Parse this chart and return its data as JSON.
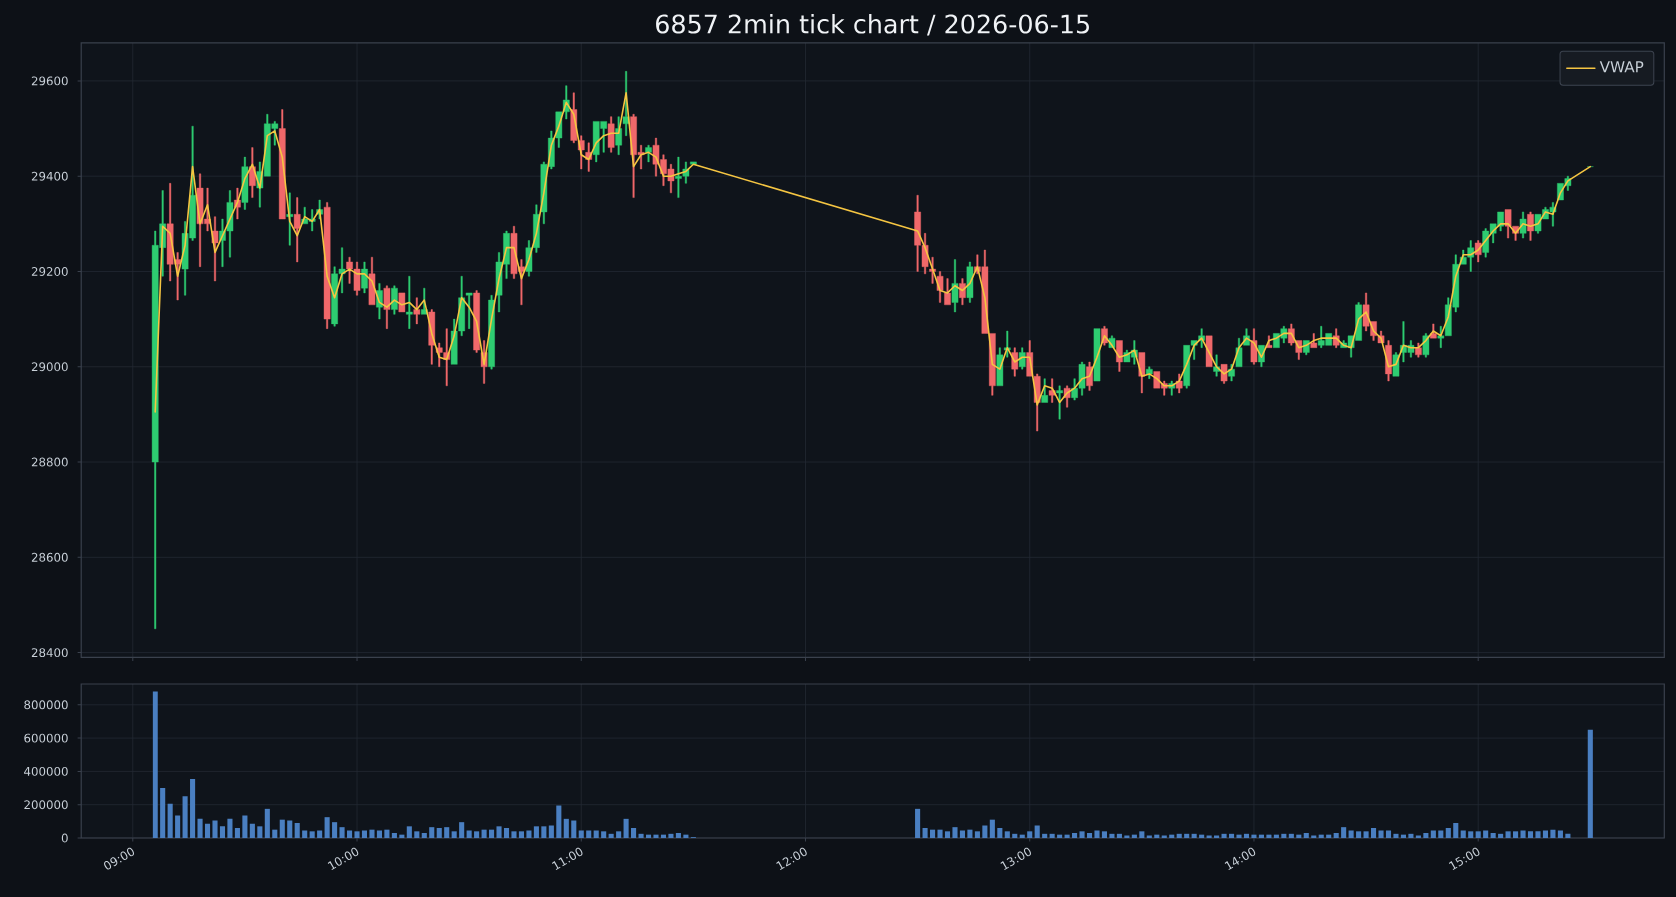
{
  "chart_data": [
    {
      "type": "candlestick",
      "title": "6857 2min tick chart / 2026-06-15",
      "x": [
        9.1,
        9.1333,
        9.1667,
        9.2,
        9.2333,
        9.2667,
        9.3,
        9.3333,
        9.3667,
        9.4,
        9.4333,
        9.4667,
        9.5,
        9.5333,
        9.5667,
        9.6,
        9.6333,
        9.6667,
        9.7,
        9.7333,
        9.7667,
        9.8,
        9.8333,
        9.8667,
        9.9,
        9.9333,
        9.9667,
        10,
        10.0333,
        10.0667,
        10.1,
        10.1333,
        10.1667,
        10.2,
        10.2333,
        10.2667,
        10.3,
        10.3333,
        10.3667,
        10.4,
        10.4333,
        10.4667,
        10.5,
        10.5333,
        10.5667,
        10.6,
        10.6333,
        10.6667,
        10.7,
        10.7333,
        10.7667,
        10.8,
        10.8333,
        10.8667,
        10.9,
        10.9333,
        10.9667,
        11,
        11.0333,
        11.0667,
        11.1,
        11.1333,
        11.1667,
        11.2,
        11.2333,
        11.2667,
        11.3,
        11.3333,
        11.3667,
        11.4,
        11.4333,
        11.4667,
        11.5,
        12.5,
        12.5333,
        12.5667,
        12.6,
        12.6333,
        12.6667,
        12.7,
        12.7333,
        12.7667,
        12.8,
        12.8333,
        12.8667,
        12.9,
        12.9333,
        12.9667,
        13,
        13.0333,
        13.0667,
        13.1,
        13.1333,
        13.1667,
        13.2,
        13.2333,
        13.2667,
        13.3,
        13.3333,
        13.3667,
        13.4,
        13.4333,
        13.4667,
        13.5,
        13.5333,
        13.5667,
        13.6,
        13.6333,
        13.6667,
        13.7,
        13.7333,
        13.7667,
        13.8,
        13.8333,
        13.8667,
        13.9,
        13.9333,
        13.9667,
        14,
        14.0333,
        14.0667,
        14.1,
        14.1333,
        14.1667,
        14.2,
        14.2333,
        14.2667,
        14.3,
        14.3333,
        14.3667,
        14.4,
        14.4333,
        14.4667,
        14.5,
        14.5333,
        14.5667,
        14.6,
        14.6333,
        14.6667,
        14.7,
        14.7333,
        14.7667,
        14.8,
        14.8333,
        14.8667,
        14.9,
        14.9333,
        14.9667,
        15,
        15.0333,
        15.0667,
        15.1,
        15.1333,
        15.1667,
        15.2,
        15.2333,
        15.2667,
        15.3,
        15.3333,
        15.3667,
        15.4,
        15.5
      ],
      "ohlc": [
        [
          28800,
          29285,
          28450,
          29255
        ],
        [
          29250,
          29370,
          29190,
          29300
        ],
        [
          29300,
          29385,
          29180,
          29215
        ],
        [
          29225,
          29240,
          29140,
          29215
        ],
        [
          29205,
          29305,
          29150,
          29280
        ],
        [
          29270,
          29505,
          29265,
          29360
        ],
        [
          29375,
          29405,
          29210,
          29300
        ],
        [
          29310,
          29375,
          29285,
          29300
        ],
        [
          29285,
          29315,
          29180,
          29260
        ],
        [
          29265,
          29310,
          29210,
          29285
        ],
        [
          29285,
          29370,
          29230,
          29345
        ],
        [
          29350,
          29375,
          29310,
          29335
        ],
        [
          29345,
          29440,
          29330,
          29420
        ],
        [
          29420,
          29460,
          29355,
          29380
        ],
        [
          29375,
          29430,
          29335,
          29410
        ],
        [
          29400,
          29530,
          29400,
          29510
        ],
        [
          29500,
          29515,
          29465,
          29510
        ],
        [
          29500,
          29540,
          29310,
          29310
        ],
        [
          29315,
          29365,
          29255,
          29320
        ],
        [
          29320,
          29355,
          29220,
          29290
        ],
        [
          29300,
          29335,
          29300,
          29310
        ],
        [
          29305,
          29330,
          29285,
          29310
        ],
        [
          29320,
          29350,
          29310,
          29330
        ],
        [
          29335,
          29345,
          29080,
          29100
        ],
        [
          29090,
          29210,
          29085,
          29195
        ],
        [
          29195,
          29250,
          29155,
          29205
        ],
        [
          29220,
          29230,
          29175,
          29205
        ],
        [
          29205,
          29220,
          29150,
          29160
        ],
        [
          29165,
          29220,
          29155,
          29205
        ],
        [
          29195,
          29230,
          29130,
          29130
        ],
        [
          29125,
          29175,
          29100,
          29160
        ],
        [
          29165,
          29170,
          29080,
          29120
        ],
        [
          29120,
          29170,
          29110,
          29165
        ],
        [
          29155,
          29155,
          29115,
          29115
        ],
        [
          29110,
          29190,
          29080,
          29115
        ],
        [
          29120,
          29145,
          29090,
          29110
        ],
        [
          29110,
          29165,
          29110,
          29120
        ],
        [
          29115,
          29120,
          29005,
          29045
        ],
        [
          29040,
          29050,
          29000,
          29030
        ],
        [
          29030,
          29080,
          28960,
          29015
        ],
        [
          29005,
          29100,
          29005,
          29075
        ],
        [
          29075,
          29190,
          29065,
          29145
        ],
        [
          29150,
          29155,
          29080,
          29155
        ],
        [
          29155,
          29160,
          29030,
          29035
        ],
        [
          29030,
          29055,
          28965,
          29000
        ],
        [
          29000,
          29150,
          28995,
          29140
        ],
        [
          29150,
          29240,
          29115,
          29220
        ],
        [
          29215,
          29285,
          29185,
          29280
        ],
        [
          29280,
          29295,
          29185,
          29195
        ],
        [
          29210,
          29225,
          29130,
          29200
        ],
        [
          29200,
          29265,
          29190,
          29250
        ],
        [
          29250,
          29340,
          29240,
          29320
        ],
        [
          29325,
          29430,
          29300,
          29425
        ],
        [
          29420,
          29495,
          29415,
          29480
        ],
        [
          29480,
          29535,
          29460,
          29535
        ],
        [
          29535,
          29590,
          29520,
          29560
        ],
        [
          29540,
          29575,
          29470,
          29475
        ],
        [
          29475,
          29485,
          29415,
          29455
        ],
        [
          29450,
          29470,
          29410,
          29435
        ],
        [
          29445,
          29515,
          29430,
          29515
        ],
        [
          29500,
          29515,
          29450,
          29515
        ],
        [
          29510,
          29525,
          29450,
          29460
        ],
        [
          29465,
          29525,
          29445,
          29500
        ],
        [
          29510,
          29620,
          29485,
          29525
        ],
        [
          29525,
          29530,
          29355,
          29445
        ],
        [
          29450,
          29465,
          29415,
          29445
        ],
        [
          29450,
          29465,
          29430,
          29460
        ],
        [
          29465,
          29480,
          29400,
          29425
        ],
        [
          29435,
          29445,
          29380,
          29405
        ],
        [
          29415,
          29425,
          29365,
          29390
        ],
        [
          29395,
          29440,
          29355,
          29400
        ],
        [
          29400,
          29430,
          29385,
          29415
        ],
        [
          29425,
          29430,
          29425,
          29430
        ],
        [
          29325,
          29360,
          29200,
          29255
        ],
        [
          29255,
          29280,
          29195,
          29210
        ],
        [
          29205,
          29230,
          29175,
          29200
        ],
        [
          29190,
          29200,
          29135,
          29160
        ],
        [
          29155,
          29185,
          29130,
          29130
        ],
        [
          29135,
          29225,
          29115,
          29175
        ],
        [
          29175,
          29185,
          29130,
          29145
        ],
        [
          29145,
          29220,
          29135,
          29210
        ],
        [
          29210,
          29235,
          29195,
          29200
        ],
        [
          29210,
          29245,
          29070,
          29070
        ],
        [
          29070,
          29070,
          28940,
          28960
        ],
        [
          28960,
          29040,
          28960,
          29025
        ],
        [
          29035,
          29075,
          29020,
          29040
        ],
        [
          29030,
          29040,
          28980,
          28995
        ],
        [
          29000,
          29040,
          28995,
          29030
        ],
        [
          29030,
          29055,
          28980,
          28980
        ],
        [
          28980,
          28985,
          28865,
          28925
        ],
        [
          28925,
          28975,
          28925,
          28940
        ],
        [
          28950,
          28975,
          28925,
          28940
        ],
        [
          28945,
          28960,
          28890,
          28950
        ],
        [
          28955,
          28960,
          28915,
          28935
        ],
        [
          28935,
          28975,
          28930,
          28955
        ],
        [
          28955,
          29010,
          28940,
          29005
        ],
        [
          29000,
          29010,
          28950,
          28960
        ],
        [
          28970,
          29080,
          28970,
          29080
        ],
        [
          29080,
          29085,
          29045,
          29050
        ],
        [
          29040,
          29065,
          29040,
          29060
        ],
        [
          29055,
          29055,
          28990,
          29010
        ],
        [
          29010,
          29035,
          29010,
          29030
        ],
        [
          29020,
          29055,
          29005,
          29035
        ],
        [
          29030,
          29030,
          28945,
          28980
        ],
        [
          28985,
          29000,
          28975,
          28995
        ],
        [
          28990,
          28990,
          28955,
          28955
        ],
        [
          28965,
          28970,
          28940,
          28955
        ],
        [
          28955,
          28970,
          28940,
          28965
        ],
        [
          28970,
          28985,
          28945,
          28955
        ],
        [
          28960,
          29045,
          28955,
          29045
        ],
        [
          29045,
          29055,
          29015,
          29055
        ],
        [
          29055,
          29080,
          29040,
          29065
        ],
        [
          29065,
          29065,
          29000,
          29000
        ],
        [
          28990,
          29025,
          28980,
          29000
        ],
        [
          29005,
          29005,
          28965,
          28970
        ],
        [
          28980,
          29005,
          28970,
          28995
        ],
        [
          29000,
          29060,
          29000,
          29040
        ],
        [
          29045,
          29080,
          29045,
          29065
        ],
        [
          29055,
          29080,
          29005,
          29010
        ],
        [
          29010,
          29045,
          29000,
          29045
        ],
        [
          29045,
          29065,
          29040,
          29040
        ],
        [
          29040,
          29070,
          29040,
          29070
        ],
        [
          29060,
          29085,
          29050,
          29080
        ],
        [
          29080,
          29090,
          29045,
          29050
        ],
        [
          29055,
          29055,
          29015,
          29030
        ],
        [
          29030,
          29055,
          29025,
          29055
        ],
        [
          29050,
          29070,
          29040,
          29040
        ],
        [
          29045,
          29085,
          29040,
          29055
        ],
        [
          29045,
          29070,
          29045,
          29070
        ],
        [
          29065,
          29080,
          29040,
          29045
        ],
        [
          29040,
          29055,
          29040,
          29050
        ],
        [
          29040,
          29065,
          29020,
          29065
        ],
        [
          29055,
          29135,
          29055,
          29130
        ],
        [
          29130,
          29155,
          29075,
          29085
        ],
        [
          29095,
          29095,
          29055,
          29065
        ],
        [
          29065,
          29075,
          29050,
          29050
        ],
        [
          29045,
          29055,
          28970,
          28985
        ],
        [
          28980,
          29030,
          28980,
          29025
        ],
        [
          29030,
          29095,
          29010,
          29045
        ],
        [
          29030,
          29055,
          29020,
          29045
        ],
        [
          29040,
          29050,
          29020,
          29025
        ],
        [
          29025,
          29070,
          29020,
          29065
        ],
        [
          29070,
          29090,
          29060,
          29060
        ],
        [
          29060,
          29085,
          29040,
          29065
        ],
        [
          29065,
          29145,
          29065,
          29130
        ],
        [
          29125,
          29235,
          29115,
          29215
        ],
        [
          29215,
          29245,
          29215,
          29230
        ],
        [
          29230,
          29265,
          29200,
          29250
        ],
        [
          29260,
          29265,
          29220,
          29235
        ],
        [
          29240,
          29290,
          29230,
          29285
        ],
        [
          29280,
          29300,
          29260,
          29300
        ],
        [
          29295,
          29325,
          29285,
          29325
        ],
        [
          29330,
          29330,
          29270,
          29295
        ],
        [
          29295,
          29295,
          29265,
          29280
        ],
        [
          29280,
          29325,
          29270,
          29310
        ],
        [
          29320,
          29325,
          29265,
          29285
        ],
        [
          29285,
          29320,
          29280,
          29320
        ],
        [
          29310,
          29335,
          29310,
          29330
        ],
        [
          29325,
          29345,
          29295,
          29335
        ],
        [
          29350,
          29385,
          29350,
          29385
        ],
        [
          29380,
          29400,
          29370,
          29395
        ],
        [
          29420,
          29420,
          29420,
          29420
        ]
      ],
      "colors": [
        "#2ecc71",
        "#2ecc71",
        "#f0686a",
        "#f0686a",
        "#2ecc71",
        "#2ecc71",
        "#f0686a",
        "#f0686a",
        "#f0686a",
        "#2ecc71",
        "#2ecc71",
        "#f0686a",
        "#2ecc71",
        "#f0686a",
        "#2ecc71",
        "#2ecc71",
        "#2ecc71",
        "#f0686a",
        "#2ecc71",
        "#f0686a",
        "#2ecc71",
        "#2ecc71",
        "#2ecc71",
        "#f0686a",
        "#2ecc71",
        "#2ecc71",
        "#f0686a",
        "#f0686a",
        "#2ecc71",
        "#f0686a",
        "#2ecc71",
        "#f0686a",
        "#2ecc71",
        "#f0686a",
        "#2ecc71",
        "#f0686a",
        "#2ecc71",
        "#f0686a",
        "#f0686a",
        "#f0686a",
        "#2ecc71",
        "#2ecc71",
        "#2ecc71",
        "#f0686a",
        "#f0686a",
        "#2ecc71",
        "#2ecc71",
        "#2ecc71",
        "#f0686a",
        "#f0686a",
        "#2ecc71",
        "#2ecc71",
        "#2ecc71",
        "#2ecc71",
        "#2ecc71",
        "#2ecc71",
        "#f0686a",
        "#f0686a",
        "#f0686a",
        "#2ecc71",
        "#2ecc71",
        "#f0686a",
        "#2ecc71",
        "#2ecc71",
        "#f0686a",
        "#f0686a",
        "#2ecc71",
        "#f0686a",
        "#f0686a",
        "#f0686a",
        "#2ecc71",
        "#2ecc71",
        "#2ecc71",
        "#f0686a",
        "#f0686a",
        "#f0686a",
        "#f0686a",
        "#f0686a",
        "#2ecc71",
        "#f0686a",
        "#2ecc71",
        "#f0686a",
        "#f0686a",
        "#f0686a",
        "#2ecc71",
        "#2ecc71",
        "#f0686a",
        "#2ecc71",
        "#f0686a",
        "#f0686a",
        "#2ecc71",
        "#f0686a",
        "#2ecc71",
        "#f0686a",
        "#2ecc71",
        "#2ecc71",
        "#f0686a",
        "#2ecc71",
        "#f0686a",
        "#2ecc71",
        "#f0686a",
        "#2ecc71",
        "#2ecc71",
        "#f0686a",
        "#2ecc71",
        "#f0686a",
        "#f0686a",
        "#2ecc71",
        "#f0686a",
        "#2ecc71",
        "#2ecc71",
        "#2ecc71",
        "#f0686a",
        "#2ecc71",
        "#f0686a",
        "#2ecc71",
        "#2ecc71",
        "#2ecc71",
        "#f0686a",
        "#2ecc71",
        "#f0686a",
        "#2ecc71",
        "#2ecc71",
        "#f0686a",
        "#f0686a",
        "#2ecc71",
        "#f0686a",
        "#2ecc71",
        "#2ecc71",
        "#f0686a",
        "#2ecc71",
        "#2ecc71",
        "#2ecc71",
        "#f0686a",
        "#f0686a",
        "#f0686a",
        "#f0686a",
        "#2ecc71",
        "#2ecc71",
        "#2ecc71",
        "#f0686a",
        "#2ecc71",
        "#f0686a",
        "#2ecc71",
        "#2ecc71",
        "#2ecc71",
        "#2ecc71",
        "#2ecc71",
        "#f0686a",
        "#2ecc71",
        "#2ecc71",
        "#2ecc71",
        "#f0686a",
        "#f0686a",
        "#2ecc71",
        "#f0686a",
        "#2ecc71",
        "#2ecc71",
        "#2ecc71",
        "#2ecc71",
        "#2ecc71",
        "#2ecc71"
      ],
      "series": [
        {
          "name": "VWAP",
          "type": "line",
          "color": "#f5c542",
          "values": [
            28905,
            29295,
            29280,
            29190,
            29255,
            29420,
            29300,
            29340,
            29240,
            29275,
            29310,
            29345,
            29395,
            29425,
            29375,
            29485,
            29495,
            29440,
            29305,
            29275,
            29315,
            29305,
            29330,
            29190,
            29145,
            29195,
            29205,
            29195,
            29195,
            29180,
            29135,
            29125,
            29140,
            29130,
            29135,
            29120,
            29140,
            29070,
            29020,
            29015,
            29065,
            29145,
            29125,
            29095,
            29005,
            29100,
            29185,
            29250,
            29250,
            29185,
            29225,
            29280,
            29365,
            29465,
            29505,
            29555,
            29530,
            29445,
            29435,
            29470,
            29485,
            29490,
            29490,
            29575,
            29420,
            29445,
            29450,
            29440,
            29400,
            29400,
            29405,
            29410,
            29425,
            29285,
            29250,
            29205,
            29160,
            29155,
            29170,
            29160,
            29175,
            29210,
            29145,
            29005,
            28995,
            29040,
            29010,
            29020,
            29020,
            28920,
            28960,
            28955,
            28925,
            28945,
            28955,
            28975,
            28980,
            29020,
            29065,
            29045,
            29020,
            29025,
            29035,
            28980,
            28985,
            28975,
            28960,
            28960,
            28970,
            29005,
            29045,
            29060,
            29030,
            29000,
            28985,
            28995,
            29040,
            29060,
            29050,
            29020,
            29055,
            29060,
            29070,
            29070,
            29040,
            29045,
            29055,
            29060,
            29060,
            29060,
            29045,
            29040,
            29100,
            29115,
            29075,
            29060,
            29000,
            29005,
            29045,
            29040,
            29040,
            29055,
            29075,
            29065,
            29105,
            29190,
            29235,
            29235,
            29245,
            29265,
            29285,
            29300,
            29300,
            29280,
            29300,
            29295,
            29300,
            29325,
            29320,
            29365,
            29390,
            29420
          ]
        }
      ],
      "xlim": [
        8.77,
        15.83
      ],
      "ylim": [
        28390,
        29680
      ],
      "xticks": [
        {
          "value": 9,
          "label": null
        },
        {
          "value": 10,
          "label": null
        },
        {
          "value": 11,
          "label": null
        },
        {
          "value": 12,
          "label": null
        },
        {
          "value": 13,
          "label": null
        },
        {
          "value": 14,
          "label": null
        },
        {
          "value": 15,
          "label": null
        }
      ],
      "yticks": [
        28400,
        28600,
        28800,
        29000,
        29200,
        29400,
        29600
      ],
      "tick_labels": "y",
      "grid": true,
      "legend": "top right"
    },
    {
      "type": "bar",
      "x": [
        9.1,
        9.1333,
        9.1667,
        9.2,
        9.2333,
        9.2667,
        9.3,
        9.3333,
        9.3667,
        9.4,
        9.4333,
        9.4667,
        9.5,
        9.5333,
        9.5667,
        9.6,
        9.6333,
        9.6667,
        9.7,
        9.7333,
        9.7667,
        9.8,
        9.8333,
        9.8667,
        9.9,
        9.9333,
        9.9667,
        10,
        10.0333,
        10.0667,
        10.1,
        10.1333,
        10.1667,
        10.2,
        10.2333,
        10.2667,
        10.3,
        10.3333,
        10.3667,
        10.4,
        10.4333,
        10.4667,
        10.5,
        10.5333,
        10.5667,
        10.6,
        10.6333,
        10.6667,
        10.7,
        10.7333,
        10.7667,
        10.8,
        10.8333,
        10.8667,
        10.9,
        10.9333,
        10.9667,
        11,
        11.0333,
        11.0667,
        11.1,
        11.1333,
        11.1667,
        11.2,
        11.2333,
        11.2667,
        11.3,
        11.3333,
        11.3667,
        11.4,
        11.4333,
        11.4667,
        11.5,
        12.5,
        12.5333,
        12.5667,
        12.6,
        12.6333,
        12.6667,
        12.7,
        12.7333,
        12.7667,
        12.8,
        12.8333,
        12.8667,
        12.9,
        12.9333,
        12.9667,
        13,
        13.0333,
        13.0667,
        13.1,
        13.1333,
        13.1667,
        13.2,
        13.2333,
        13.2667,
        13.3,
        13.3333,
        13.3667,
        13.4,
        13.4333,
        13.4667,
        13.5,
        13.5333,
        13.5667,
        13.6,
        13.6333,
        13.6667,
        13.7,
        13.7333,
        13.7667,
        13.8,
        13.8333,
        13.8667,
        13.9,
        13.9333,
        13.9667,
        14,
        14.0333,
        14.0667,
        14.1,
        14.1333,
        14.1667,
        14.2,
        14.2333,
        14.2667,
        14.3,
        14.3333,
        14.3667,
        14.4,
        14.4333,
        14.4667,
        14.5,
        14.5333,
        14.5667,
        14.6,
        14.6333,
        14.6667,
        14.7,
        14.7333,
        14.7667,
        14.8,
        14.8333,
        14.8667,
        14.9,
        14.9333,
        14.9667,
        15,
        15.0333,
        15.0667,
        15.1,
        15.1333,
        15.1667,
        15.2,
        15.2333,
        15.2667,
        15.3,
        15.3333,
        15.3667,
        15.4,
        15.5
      ],
      "values": [
        880000,
        300000,
        205000,
        135000,
        250000,
        355000,
        115000,
        85000,
        105000,
        70000,
        115000,
        60000,
        135000,
        85000,
        70000,
        175000,
        50000,
        110000,
        105000,
        90000,
        45000,
        40000,
        45000,
        125000,
        95000,
        65000,
        45000,
        40000,
        45000,
        50000,
        45000,
        50000,
        30000,
        20000,
        70000,
        40000,
        30000,
        65000,
        60000,
        65000,
        40000,
        95000,
        45000,
        40000,
        50000,
        50000,
        70000,
        60000,
        40000,
        40000,
        45000,
        70000,
        70000,
        75000,
        195000,
        115000,
        105000,
        45000,
        45000,
        45000,
        40000,
        25000,
        40000,
        115000,
        60000,
        25000,
        20000,
        20000,
        20000,
        25000,
        30000,
        20000,
        5000,
        175000,
        60000,
        50000,
        50000,
        40000,
        65000,
        45000,
        50000,
        40000,
        75000,
        110000,
        60000,
        40000,
        25000,
        20000,
        40000,
        75000,
        25000,
        25000,
        20000,
        20000,
        30000,
        40000,
        30000,
        45000,
        40000,
        25000,
        25000,
        15000,
        20000,
        40000,
        15000,
        20000,
        15000,
        20000,
        25000,
        25000,
        25000,
        20000,
        15000,
        15000,
        25000,
        25000,
        20000,
        25000,
        20000,
        20000,
        20000,
        20000,
        25000,
        25000,
        20000,
        30000,
        15000,
        20000,
        20000,
        30000,
        65000,
        45000,
        40000,
        40000,
        60000,
        45000,
        45000,
        25000,
        20000,
        25000,
        15000,
        30000,
        45000,
        45000,
        60000,
        90000,
        45000,
        40000,
        40000,
        45000,
        30000,
        25000,
        40000,
        40000,
        45000,
        40000,
        40000,
        45000,
        50000,
        45000,
        25000,
        650000
      ],
      "color": "#4a7fc1",
      "xlim": [
        8.77,
        15.83
      ],
      "ylim": [
        0,
        925000
      ],
      "xticks": [
        {
          "value": 9,
          "label": "09:00"
        },
        {
          "value": 10,
          "label": "10:00"
        },
        {
          "value": 11,
          "label": "11:00"
        },
        {
          "value": 12,
          "label": "12:00"
        },
        {
          "value": 13,
          "label": "13:00"
        },
        {
          "value": 14,
          "label": "14:00"
        },
        {
          "value": 15,
          "label": "15:00"
        }
      ],
      "yticks": [
        0,
        200000,
        400000,
        600000,
        800000
      ],
      "grid": true
    }
  ]
}
